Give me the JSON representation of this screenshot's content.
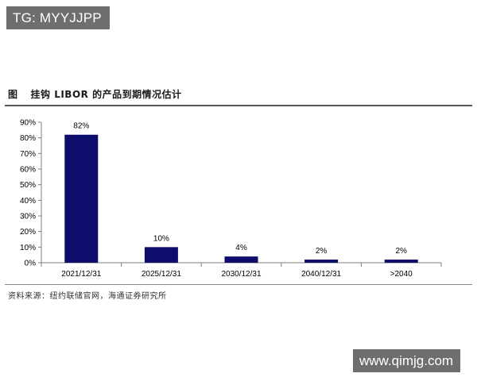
{
  "watermark_top": "TG: MYYJJPP",
  "figure": {
    "label": "图",
    "title": "挂钩 LIBOR 的产品到期情况估计"
  },
  "source": "资料来源：纽约联储官网，海通证券研究所",
  "watermark_bottom": "www.qimjg.com",
  "colors": {
    "bar": "#0d0d6b",
    "axis": "#7f7f7f"
  },
  "chart_data": {
    "type": "bar",
    "categories": [
      "2021/12/31",
      "2025/12/31",
      "2030/12/31",
      "2040/12/31",
      ">2040"
    ],
    "values": [
      82,
      10,
      4,
      2,
      2
    ],
    "data_labels": [
      "82%",
      "10%",
      "4%",
      "2%",
      "2%"
    ],
    "y_ticks": [
      "0%",
      "10%",
      "20%",
      "30%",
      "40%",
      "50%",
      "60%",
      "70%",
      "80%",
      "90%"
    ],
    "ylim": [
      0,
      90
    ],
    "title": "",
    "xlabel": "",
    "ylabel": "",
    "grid": false,
    "legend": "none"
  }
}
